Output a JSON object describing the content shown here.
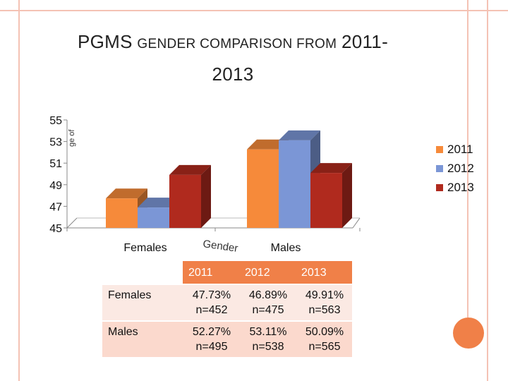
{
  "title_line1_big": "PGMS",
  "title_line1_small": "GENDER COMPARISON FROM",
  "title_line1_year": "2011-",
  "title_line2": "2013",
  "chart_data": {
    "type": "bar",
    "style": "3d-clustered",
    "categories": [
      "Females",
      "Males"
    ],
    "series": [
      {
        "name": "2011",
        "values": [
          47.73,
          52.27
        ],
        "color": "#f68a3a"
      },
      {
        "name": "2012",
        "values": [
          46.89,
          53.11
        ],
        "color": "#7b96d6"
      },
      {
        "name": "2013",
        "values": [
          49.91,
          50.09
        ],
        "color": "#b02a1e"
      }
    ],
    "yticks": [
      45,
      47,
      49,
      51,
      53,
      55
    ],
    "ylim": [
      45,
      55
    ],
    "xlabel": "Gender",
    "ylabel": "percentage",
    "ylabel_visible": "ge of",
    "legend_position": "right"
  },
  "table": {
    "headers": [
      "",
      "2011",
      "2012",
      "2013"
    ],
    "rows": [
      {
        "label": "Females",
        "cells": [
          [
            "47.73%",
            "n=452"
          ],
          [
            "46.89%",
            "n=475"
          ],
          [
            "49.91%",
            "n=563"
          ]
        ]
      },
      {
        "label": "Males",
        "cells": [
          [
            "52.27%",
            "n=495"
          ],
          [
            "53.11%",
            "n=538"
          ],
          [
            "50.09%",
            "n=565"
          ]
        ]
      }
    ]
  },
  "colors": {
    "accent": "#f08048",
    "frame": "#f4c2b4"
  }
}
